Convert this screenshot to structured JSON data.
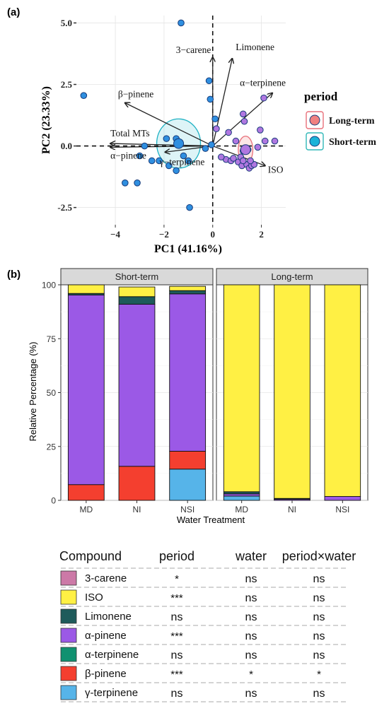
{
  "panels": {
    "a_label": "(a)",
    "b_label": "(b)"
  },
  "chart_data": [
    {
      "type": "scatter",
      "title": "",
      "xlabel": "PC1 (41.16%)",
      "ylabel": "PC2 (23.33%)",
      "xlim": [
        -5.6,
        3.0
      ],
      "ylim": [
        -3.2,
        5.3
      ],
      "xticks": [
        "−4",
        "−2",
        "0",
        "2"
      ],
      "xtick_values": [
        -4,
        -2,
        0,
        2
      ],
      "yticks": [
        "-2.5",
        "0.0",
        "2.5",
        "5.0"
      ],
      "ytick_values": [
        -2.5,
        0.0,
        2.5,
        5.0
      ],
      "grid": true,
      "legend": {
        "title": "period",
        "position": "right",
        "entries": [
          {
            "name": "Long-term",
            "fill": "#f08080",
            "ring": "#e8707a"
          },
          {
            "name": "Short-term",
            "fill": "#1ab3d8",
            "ring": "#30b8b8"
          }
        ]
      },
      "series": [
        {
          "name": "Short-term",
          "color": "#2f8fe0",
          "points": [
            [
              -1.3,
              5.0
            ],
            [
              -5.3,
              2.05
            ],
            [
              -0.15,
              2.65
            ],
            [
              -0.1,
              1.9
            ],
            [
              0.1,
              1.1
            ],
            [
              -1.5,
              0.3
            ],
            [
              -1.9,
              0.3
            ],
            [
              -2.8,
              0.0
            ],
            [
              -3.0,
              -0.4
            ],
            [
              -2.5,
              -0.6
            ],
            [
              -2.2,
              -0.6
            ],
            [
              -1.2,
              -0.4
            ],
            [
              -1.0,
              -0.6
            ],
            [
              -1.8,
              -0.8
            ],
            [
              -1.5,
              -1.0
            ],
            [
              -3.6,
              -1.5
            ],
            [
              -3.1,
              -1.5
            ],
            [
              -0.95,
              -2.5
            ],
            [
              -0.3,
              -0.1
            ],
            [
              -0.05,
              0.05
            ]
          ],
          "centroid": [
            -1.4,
            0.1
          ],
          "ellipse_radii": [
            0.9,
            1.0
          ]
        },
        {
          "name": "Long-term",
          "color": "#b077e0",
          "points": [
            [
              2.1,
              1.95
            ],
            [
              1.25,
              1.3
            ],
            [
              1.3,
              1.0
            ],
            [
              0.15,
              0.7
            ],
            [
              0.65,
              0.55
            ],
            [
              0.95,
              0.2
            ],
            [
              2.15,
              0.2
            ],
            [
              2.55,
              0.2
            ],
            [
              1.95,
              0.65
            ],
            [
              1.25,
              -0.2
            ],
            [
              1.45,
              -0.15
            ],
            [
              1.85,
              -0.05
            ],
            [
              0.55,
              -0.55
            ],
            [
              0.75,
              -0.6
            ],
            [
              0.85,
              -0.5
            ],
            [
              1.05,
              -0.65
            ],
            [
              1.2,
              -0.8
            ],
            [
              1.4,
              -0.75
            ],
            [
              1.5,
              -0.9
            ],
            [
              1.6,
              -0.8
            ],
            [
              1.7,
              -0.75
            ],
            [
              1.55,
              -0.6
            ],
            [
              0.35,
              -0.45
            ],
            [
              1.15,
              -0.45
            ],
            [
              1.25,
              -0.6
            ]
          ],
          "centroid": [
            1.35,
            -0.15
          ],
          "ellipse_radii": [
            0.3,
            0.55
          ]
        }
      ],
      "loadings": [
        {
          "name": "3−carene",
          "end": [
            0.0,
            3.6
          ]
        },
        {
          "name": "Limonene",
          "end": [
            0.8,
            3.55
          ]
        },
        {
          "name": "α−terpinene",
          "end": [
            2.45,
            2.15
          ]
        },
        {
          "name": "β−pinene",
          "end": [
            -3.6,
            1.75
          ]
        },
        {
          "name": "Total MTs",
          "end": [
            -4.2,
            0.1
          ]
        },
        {
          "name": "α−pinene",
          "end": [
            -4.2,
            -0.05
          ]
        },
        {
          "name": "γ−terpinene",
          "end": [
            -1.95,
            -0.25
          ]
        },
        {
          "name": "ISO",
          "end": [
            2.15,
            -0.8
          ]
        }
      ]
    },
    {
      "type": "bar",
      "stacked": true,
      "xlabel": "Water Treatment",
      "ylabel": "Relative Percentage (%)",
      "ylim": [
        0,
        100
      ],
      "yticks": [
        "0",
        "25",
        "50",
        "75",
        "100"
      ],
      "ytick_values": [
        0,
        25,
        50,
        75,
        100
      ],
      "facets": [
        "Short-term",
        "Long-term"
      ],
      "categories": [
        "MD",
        "NI",
        "NSI"
      ],
      "series": [
        {
          "name": "γ-terpinene",
          "color": "#56b4e9",
          "values": {
            "Short-term": [
              0,
              0,
              14.5
            ],
            "Long-term": [
              2.0,
              0,
              0
            ]
          }
        },
        {
          "name": "β-pinene",
          "color": "#f43f2f",
          "values": {
            "Short-term": [
              7.3,
              15.8,
              8.3
            ],
            "Long-term": [
              0,
              0,
              0
            ]
          }
        },
        {
          "name": "α-terpinene",
          "color": "#109170",
          "values": {
            "Short-term": [
              0,
              0,
              0
            ],
            "Long-term": [
              0,
              0,
              0
            ]
          }
        },
        {
          "name": "α-pinene",
          "color": "#9b59e6",
          "values": {
            "Short-term": [
              88.0,
              75.2,
              73.0
            ],
            "Long-term": [
              1.0,
              0.5,
              1.8
            ]
          }
        },
        {
          "name": "Limonene",
          "color": "#1e5b5b",
          "values": {
            "Short-term": [
              0.7,
              3.5,
              1.5
            ],
            "Long-term": [
              1.0,
              0.4,
              0
            ]
          }
        },
        {
          "name": "ISO",
          "color": "#fff044",
          "values": {
            "Short-term": [
              4.0,
              4.5,
              2.0
            ],
            "Long-term": [
              96.0,
              99.1,
              98.2
            ]
          }
        },
        {
          "name": "3-carene",
          "color": "#cc79a7",
          "values": {
            "Short-term": [
              0,
              0,
              0
            ],
            "Long-term": [
              0,
              0,
              0
            ]
          }
        }
      ]
    }
  ],
  "table": {
    "headers": [
      "Compound",
      "period",
      "water",
      "period×water"
    ],
    "rows": [
      {
        "compound": "3-carene",
        "color": "#cc79a7",
        "period": "*",
        "water": "ns",
        "interaction": "ns"
      },
      {
        "compound": "ISO",
        "color": "#fff044",
        "period": "***",
        "water": "ns",
        "interaction": "ns"
      },
      {
        "compound": "Limonene",
        "color": "#1e5b5b",
        "period": "ns",
        "water": "ns",
        "interaction": "ns"
      },
      {
        "compound": "α-pinene",
        "color": "#9b59e6",
        "period": "***",
        "water": "ns",
        "interaction": "ns"
      },
      {
        "compound": "α-terpinene",
        "color": "#109170",
        "period": "ns",
        "water": "ns",
        "interaction": "ns"
      },
      {
        "compound": "β-pinene",
        "color": "#f43f2f",
        "period": "***",
        "water": "*",
        "interaction": "*"
      },
      {
        "compound": "γ-terpinene",
        "color": "#56b4e9",
        "period": "ns",
        "water": "ns",
        "interaction": "ns"
      }
    ]
  }
}
